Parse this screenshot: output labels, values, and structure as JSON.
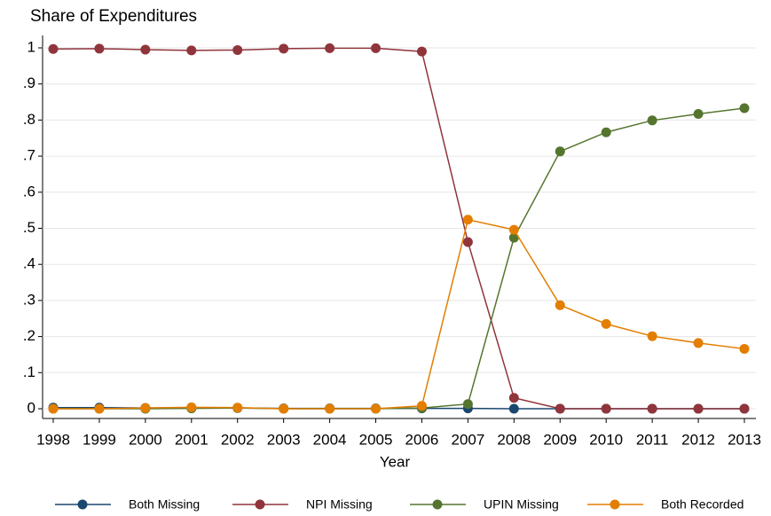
{
  "chart_data": {
    "type": "line",
    "title": "Share of Expenditures",
    "xlabel": "Year",
    "x": [
      1998,
      1999,
      2000,
      2001,
      2002,
      2003,
      2004,
      2005,
      2006,
      2007,
      2008,
      2009,
      2010,
      2011,
      2012,
      2013
    ],
    "xlim": [
      1998,
      2013
    ],
    "xticks": [
      1998,
      1999,
      2000,
      2001,
      2002,
      2003,
      2004,
      2005,
      2006,
      2007,
      2008,
      2009,
      2010,
      2011,
      2012,
      2013
    ],
    "ylim": [
      0,
      1
    ],
    "yticks": [
      0,
      {
        "value": 0.1,
        "label": ".1"
      },
      {
        "value": 0.2,
        "label": ".2"
      },
      {
        "value": 0.3,
        "label": ".3"
      },
      {
        "value": 0.4,
        "label": ".4"
      },
      {
        "value": 0.5,
        "label": ".5"
      },
      {
        "value": 0.6,
        "label": ".6"
      },
      {
        "value": 0.7,
        "label": ".7"
      },
      {
        "value": 0.8,
        "label": ".8"
      },
      {
        "value": 0.9,
        "label": ".9"
      },
      1
    ],
    "grid": true,
    "legend": "bottom",
    "series": [
      {
        "name": "Both Missing",
        "color": "#1a476f",
        "values": [
          0.003,
          0.003,
          0.002,
          0.002,
          0.002,
          0.001,
          0.001,
          0.001,
          0.001,
          0.001,
          0,
          0,
          0,
          0,
          0,
          0
        ]
      },
      {
        "name": "NPI Missing",
        "color": "#90353b",
        "values": [
          0.997,
          0.998,
          0.995,
          0.993,
          0.994,
          0.998,
          0.999,
          0.999,
          0.99,
          0.462,
          0.03,
          0,
          0,
          0,
          0,
          0
        ]
      },
      {
        "name": "UPIN Missing",
        "color": "#55752f",
        "values": [
          0,
          0,
          0,
          0.001,
          0.002,
          0,
          0,
          0,
          0.002,
          0.013,
          0.474,
          0.713,
          0.766,
          0.799,
          0.817,
          0.833
        ]
      },
      {
        "name": "Both Recorded",
        "color": "#e37e00",
        "values": [
          0,
          0,
          0.002,
          0.004,
          0.003,
          0,
          0,
          0,
          0.008,
          0.524,
          0.496,
          0.287,
          0.235,
          0.201,
          0.182,
          0.166
        ]
      }
    ]
  }
}
